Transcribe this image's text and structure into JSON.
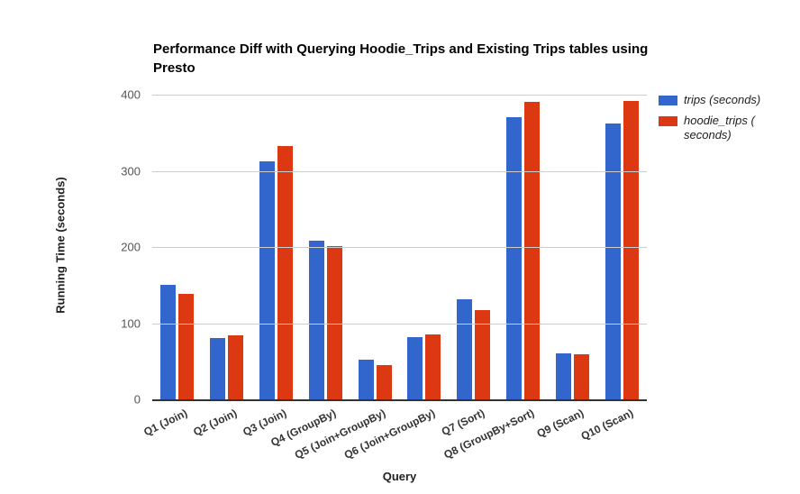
{
  "title": "Performance Diff with Querying Hoodie_Trips and Existing Trips tables using Presto",
  "axes": {
    "x_title": "Query",
    "y_title": "Running Time (seconds)"
  },
  "legend": {
    "items": [
      {
        "label": "trips (seconds)",
        "lines": [
          "trips (seconds)"
        ],
        "color": "#3366cc"
      },
      {
        "label": "hoodie_trips (seconds)",
        "lines": [
          "hoodie_trips (",
          "seconds)"
        ],
        "color": "#dc3912"
      }
    ]
  },
  "chart_data": {
    "type": "bar",
    "title": "Performance Diff with Querying Hoodie_Trips and Existing Trips tables using Presto",
    "xlabel": "Query",
    "ylabel": "Running Time (seconds)",
    "categories": [
      "Q1 (Join)",
      "Q2 (Join)",
      "Q3 (Join)",
      "Q4 (GroupBy)",
      "Q5 (Join+GroupBy)",
      "Q6 (Join+GroupBy)",
      "Q7 (Sort)",
      "Q8 (GroupBy+Sort)",
      "Q9 (Scan)",
      "Q10 (Scan)"
    ],
    "series": [
      {
        "name": "trips (seconds)",
        "color": "#3366cc",
        "values": [
          150,
          80,
          313,
          208,
          52,
          82,
          131,
          370,
          60,
          362
        ]
      },
      {
        "name": "hoodie_trips (seconds)",
        "color": "#dc3912",
        "values": [
          138,
          84,
          332,
          201,
          45,
          85,
          117,
          390,
          59,
          392
        ]
      }
    ],
    "ylim": [
      0,
      400
    ],
    "yticks": [
      0,
      100,
      200,
      300,
      400
    ],
    "grid": true,
    "legend_position": "right"
  },
  "colors": {
    "series_blue": "#3366cc",
    "series_red": "#dc3912",
    "gridline": "#cccccc",
    "axis_baseline": "#333333",
    "tick_text": "#555555"
  }
}
